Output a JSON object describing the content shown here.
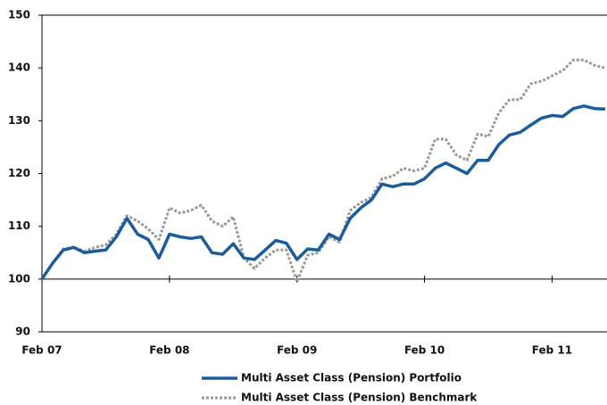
{
  "chart_data": {
    "type": "line",
    "categories": [
      "Feb 07",
      null,
      null,
      null,
      null,
      null,
      null,
      null,
      null,
      null,
      null,
      null,
      "Feb 08",
      null,
      null,
      null,
      null,
      null,
      null,
      null,
      null,
      null,
      null,
      null,
      "Feb 09",
      null,
      null,
      null,
      null,
      null,
      null,
      null,
      null,
      null,
      null,
      null,
      "Feb 10",
      null,
      null,
      null,
      null,
      null,
      null,
      null,
      null,
      null,
      null,
      null,
      "Feb 11",
      null,
      null,
      null,
      null,
      null
    ],
    "series": [
      {
        "name": "Multi Asset Class (Pension) Portfolio",
        "color": "#1b5c9b",
        "dash": false,
        "values": [
          100,
          103,
          105.5,
          106,
          105,
          105.3,
          105.5,
          108,
          111.5,
          108.5,
          107.5,
          104,
          108.5,
          108,
          107.7,
          108,
          105,
          104.7,
          106.7,
          104,
          103.7,
          105.5,
          107.3,
          106.8,
          103.7,
          105.7,
          105.5,
          108.5,
          107.5,
          111.5,
          113.5,
          115,
          118,
          117.5,
          118,
          118,
          119,
          121,
          122,
          121,
          120,
          122.5,
          122.5,
          125.5,
          127.3,
          127.8,
          129.2,
          130.5,
          131,
          130.8,
          132.3,
          132.8,
          132.3,
          132.2
        ]
      },
      {
        "name": "Multi Asset Class (Pension) Benchmark",
        "color": "#999999",
        "dash": true,
        "values": [
          100,
          103,
          105.7,
          106,
          105.3,
          106,
          106.5,
          108.5,
          112,
          111,
          109.5,
          107.5,
          113.5,
          112.5,
          113,
          114,
          111,
          110,
          111.8,
          104,
          102,
          104,
          105.5,
          105.5,
          99.5,
          104.5,
          105,
          108,
          107,
          113,
          114.5,
          115.5,
          119,
          119.5,
          121,
          120.5,
          121,
          126.5,
          126.5,
          123.5,
          122.5,
          127.5,
          127,
          131.5,
          134,
          134,
          137,
          137.5,
          138.5,
          139.5,
          141.5,
          141.5,
          140.5,
          140
        ]
      }
    ],
    "ylim": [
      90,
      150
    ],
    "yticks": [
      90,
      100,
      110,
      120,
      130,
      140,
      150
    ],
    "x_axis_at": 100,
    "grid": false,
    "legend": "bottom"
  }
}
